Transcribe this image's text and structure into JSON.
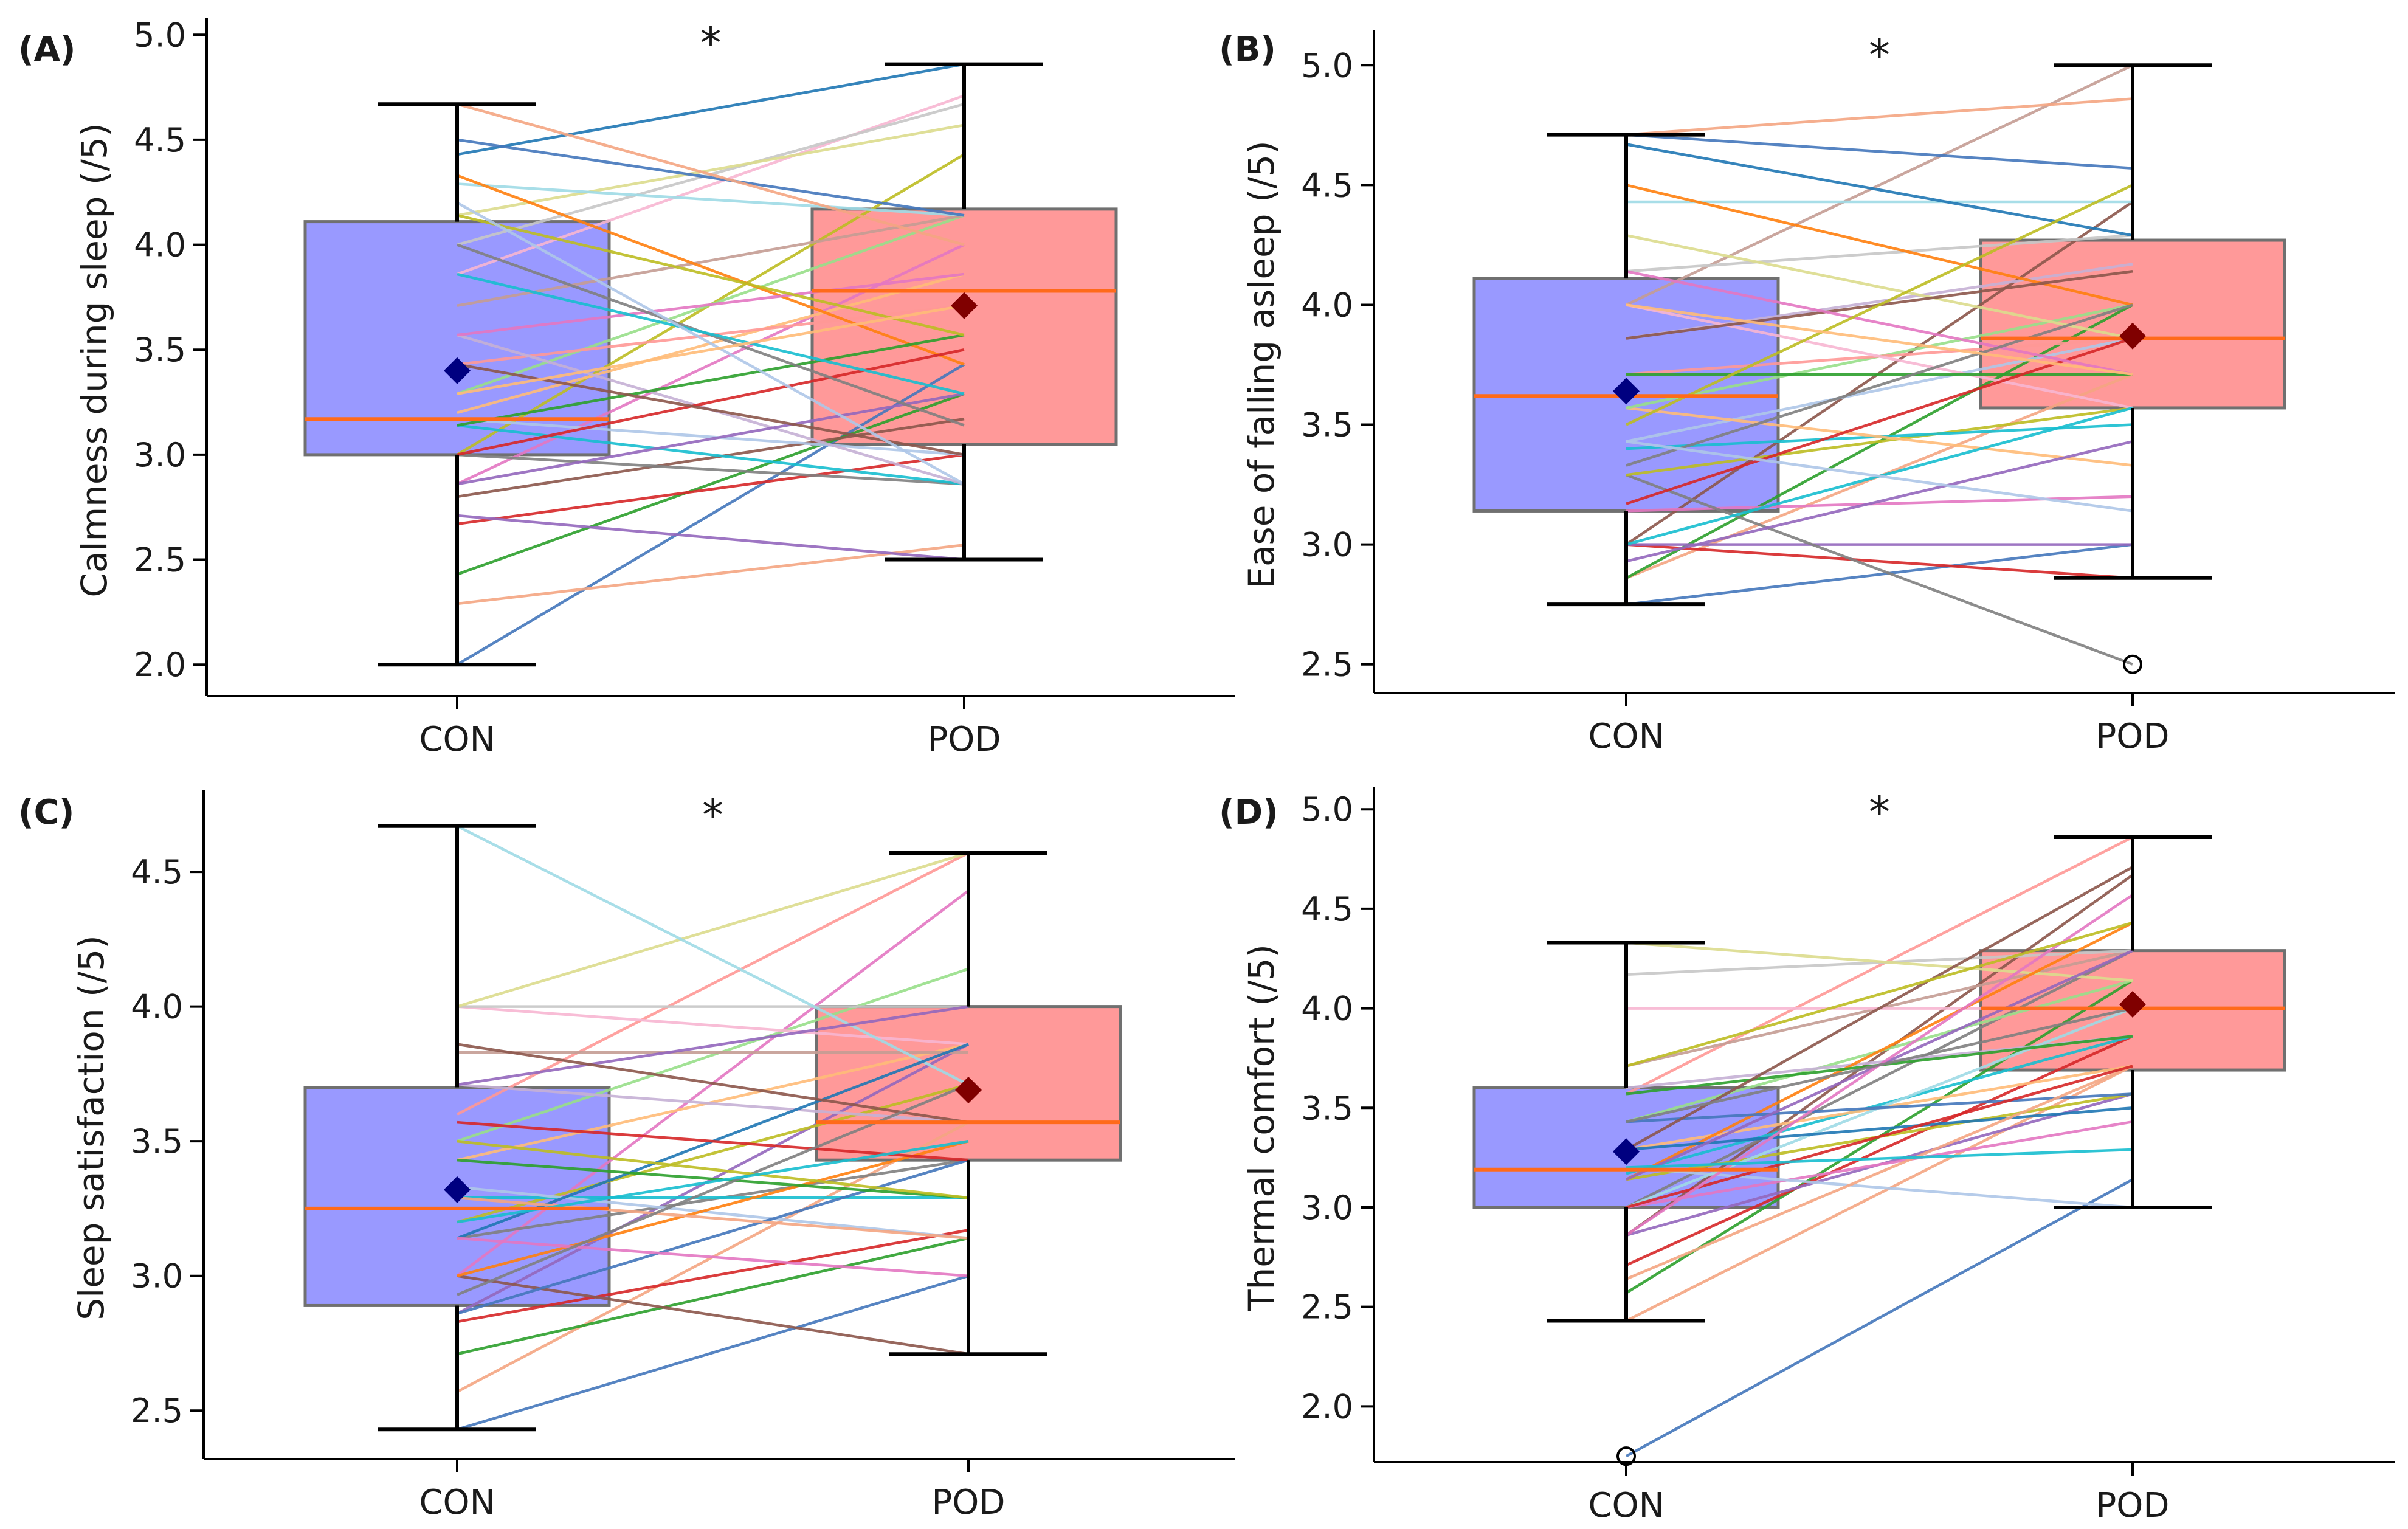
{
  "figure": {
    "panels": [
      {
        "letter": "(A)",
        "ylabel": "Calmness during sleep (/5)",
        "sig": "*",
        "categories": [
          "CON",
          "POD"
        ],
        "yticks": [
          "2.0",
          "2.5",
          "3.0",
          "3.5",
          "4.0",
          "4.5",
          "5.0"
        ]
      },
      {
        "letter": "(B)",
        "ylabel": "Ease of falling asleep (/5)",
        "sig": "*",
        "categories": [
          "CON",
          "POD"
        ],
        "yticks": [
          "2.5",
          "3.0",
          "3.5",
          "4.0",
          "4.5",
          "5.0"
        ]
      },
      {
        "letter": "(C)",
        "ylabel": "Sleep satisfaction (/5)",
        "sig": "*",
        "categories": [
          "CON",
          "POD"
        ],
        "yticks": [
          "2.5",
          "3.0",
          "3.5",
          "4.0",
          "4.5"
        ]
      },
      {
        "letter": "(D)",
        "ylabel": "Thermal comfort (/5)",
        "sig": "*",
        "categories": [
          "CON",
          "POD"
        ],
        "yticks": [
          "2.0",
          "2.5",
          "3.0",
          "3.5",
          "4.0",
          "4.5",
          "5.0"
        ]
      }
    ]
  },
  "colors": {
    "con_box": "#9999ff",
    "pod_box": "#ff9999",
    "box_edge": "#707070",
    "median": "#ff6a1a",
    "con_mean": "#000080",
    "pod_mean": "#800000",
    "whisker": "#000000",
    "palette": [
      "#4477bb",
      "#f4a582",
      "#2ca02c",
      "#d62728",
      "#9467bd",
      "#8c564b",
      "#e377c2",
      "#7f7f7f",
      "#bcbd22",
      "#17becf",
      "#aec7e8",
      "#ffbb78",
      "#98df8a",
      "#ff9896",
      "#c5b0d5",
      "#c49c94",
      "#f7b6d2",
      "#c7c7c7",
      "#dbdb8d",
      "#9edae5",
      "#ff7f0e",
      "#1f77b4"
    ]
  },
  "chart_data": [
    {
      "type": "box",
      "title": "(A)",
      "ylabel": "Calmness during sleep (/5)",
      "categories": [
        "CON",
        "POD"
      ],
      "ylim": [
        1.85,
        5.05
      ],
      "box": {
        "CON": {
          "whisker_low": 2.0,
          "q1": 3.0,
          "median": 3.17,
          "q3": 4.11,
          "whisker_high": 4.67,
          "mean": 3.4
        },
        "POD": {
          "whisker_low": 2.5,
          "q1": 3.05,
          "median": 3.78,
          "q3": 4.17,
          "whisker_high": 4.86,
          "mean": 3.71
        }
      },
      "outliers": [],
      "significance": "*",
      "pairs": [
        [
          2.0,
          3.43
        ],
        [
          2.29,
          2.57
        ],
        [
          2.43,
          3.29
        ],
        [
          2.67,
          3.0
        ],
        [
          2.71,
          2.5
        ],
        [
          2.8,
          3.17
        ],
        [
          2.86,
          4.0
        ],
        [
          3.0,
          2.86
        ],
        [
          3.0,
          4.43
        ],
        [
          3.14,
          2.86
        ],
        [
          3.17,
          3.0
        ],
        [
          3.2,
          3.86
        ],
        [
          3.29,
          4.14
        ],
        [
          3.43,
          3.71
        ],
        [
          3.57,
          2.86
        ],
        [
          3.71,
          4.14
        ],
        [
          3.86,
          4.71
        ],
        [
          4.0,
          4.67
        ],
        [
          4.14,
          4.57
        ],
        [
          4.29,
          4.14
        ],
        [
          4.33,
          3.43
        ],
        [
          4.43,
          4.86
        ],
        [
          4.5,
          4.14
        ],
        [
          4.67,
          4.0
        ],
        [
          3.14,
          3.57
        ],
        [
          3.0,
          3.5
        ],
        [
          2.86,
          3.29
        ],
        [
          3.43,
          3.0
        ],
        [
          3.57,
          3.86
        ],
        [
          4.0,
          3.14
        ],
        [
          4.14,
          3.57
        ],
        [
          3.86,
          3.29
        ],
        [
          4.2,
          2.86
        ],
        [
          3.29,
          3.71
        ]
      ]
    },
    {
      "type": "box",
      "title": "(B)",
      "ylabel": "Ease of falling asleep (/5)",
      "categories": [
        "CON",
        "POD"
      ],
      "ylim": [
        2.38,
        5.12
      ],
      "box": {
        "CON": {
          "whisker_low": 2.75,
          "q1": 3.14,
          "median": 3.62,
          "q3": 4.11,
          "whisker_high": 4.71,
          "mean": 3.64
        },
        "POD": {
          "whisker_low": 2.86,
          "q1": 3.57,
          "median": 3.86,
          "q3": 4.27,
          "whisker_high": 5.0,
          "mean": 3.87
        }
      },
      "outliers": [
        {
          "category": "POD",
          "value": 2.5
        }
      ],
      "significance": "*",
      "pairs": [
        [
          2.75,
          3.0
        ],
        [
          2.86,
          3.71
        ],
        [
          2.86,
          4.0
        ],
        [
          3.0,
          2.86
        ],
        [
          3.0,
          3.0
        ],
        [
          3.0,
          4.43
        ],
        [
          3.14,
          3.2
        ],
        [
          3.29,
          2.5
        ],
        [
          3.29,
          3.57
        ],
        [
          3.4,
          3.5
        ],
        [
          3.43,
          3.86
        ],
        [
          3.57,
          3.33
        ],
        [
          3.57,
          4.0
        ],
        [
          3.71,
          3.86
        ],
        [
          3.86,
          4.17
        ],
        [
          4.0,
          5.0
        ],
        [
          4.0,
          3.57
        ],
        [
          4.14,
          4.29
        ],
        [
          4.29,
          3.86
        ],
        [
          4.43,
          4.43
        ],
        [
          4.5,
          4.0
        ],
        [
          4.67,
          4.29
        ],
        [
          4.71,
          4.57
        ],
        [
          4.71,
          4.86
        ],
        [
          3.71,
          3.71
        ],
        [
          3.17,
          3.86
        ],
        [
          2.93,
          3.43
        ],
        [
          3.86,
          4.14
        ],
        [
          4.14,
          3.71
        ],
        [
          3.33,
          4.0
        ],
        [
          3.5,
          4.5
        ],
        [
          3.0,
          3.57
        ],
        [
          3.43,
          3.14
        ],
        [
          4.0,
          3.71
        ]
      ]
    },
    {
      "type": "box",
      "title": "(C)",
      "ylabel": "Sleep satisfaction (/5)",
      "categories": [
        "CON",
        "POD"
      ],
      "ylim": [
        2.32,
        4.78
      ],
      "box": {
        "CON": {
          "whisker_low": 2.43,
          "q1": 2.89,
          "median": 3.25,
          "q3": 3.7,
          "whisker_high": 4.67,
          "mean": 3.32
        },
        "POD": {
          "whisker_low": 2.71,
          "q1": 3.43,
          "median": 3.57,
          "q3": 4.0,
          "whisker_high": 4.57,
          "mean": 3.69
        }
      },
      "outliers": [],
      "significance": "*",
      "pairs": [
        [
          2.43,
          3.0
        ],
        [
          2.57,
          3.57
        ],
        [
          2.71,
          3.14
        ],
        [
          2.83,
          3.17
        ],
        [
          2.86,
          3.86
        ],
        [
          3.0,
          2.71
        ],
        [
          3.0,
          4.43
        ],
        [
          3.14,
          3.43
        ],
        [
          3.2,
          3.71
        ],
        [
          3.29,
          3.29
        ],
        [
          3.33,
          3.14
        ],
        [
          3.43,
          3.86
        ],
        [
          3.5,
          4.14
        ],
        [
          3.6,
          4.57
        ],
        [
          3.71,
          3.57
        ],
        [
          3.83,
          3.83
        ],
        [
          4.0,
          3.86
        ],
        [
          4.0,
          4.0
        ],
        [
          4.0,
          4.57
        ],
        [
          4.67,
          3.71
        ],
        [
          3.0,
          3.5
        ],
        [
          3.14,
          3.86
        ],
        [
          2.86,
          3.43
        ],
        [
          3.29,
          3.14
        ],
        [
          3.43,
          3.29
        ],
        [
          3.57,
          3.43
        ],
        [
          3.71,
          4.0
        ],
        [
          3.86,
          3.57
        ],
        [
          3.14,
          3.0
        ],
        [
          2.93,
          3.71
        ],
        [
          3.5,
          3.29
        ],
        [
          3.2,
          3.5
        ]
      ]
    },
    {
      "type": "box",
      "title": "(D)",
      "ylabel": "Thermal comfort (/5)",
      "categories": [
        "CON",
        "POD"
      ],
      "ylim": [
        1.72,
        5.08
      ],
      "box": {
        "CON": {
          "whisker_low": 2.43,
          "q1": 3.0,
          "median": 3.19,
          "q3": 3.6,
          "whisker_high": 4.33,
          "mean": 3.28
        },
        "POD": {
          "whisker_low": 3.0,
          "q1": 3.69,
          "median": 4.0,
          "q3": 4.29,
          "whisker_high": 4.86,
          "mean": 4.02
        }
      },
      "outliers": [
        {
          "category": "CON",
          "value": 1.75
        }
      ],
      "significance": "*",
      "pairs": [
        [
          1.75,
          3.14
        ],
        [
          2.43,
          3.71
        ],
        [
          2.57,
          4.14
        ],
        [
          2.71,
          3.86
        ],
        [
          2.86,
          3.57
        ],
        [
          2.86,
          4.67
        ],
        [
          3.0,
          3.43
        ],
        [
          3.0,
          4.29
        ],
        [
          3.14,
          3.57
        ],
        [
          3.17,
          3.86
        ],
        [
          3.2,
          3.0
        ],
        [
          3.29,
          3.71
        ],
        [
          3.43,
          4.14
        ],
        [
          3.57,
          4.86
        ],
        [
          3.6,
          3.86
        ],
        [
          3.71,
          4.29
        ],
        [
          4.0,
          4.0
        ],
        [
          4.17,
          4.29
        ],
        [
          4.33,
          4.14
        ],
        [
          3.0,
          4.0
        ],
        [
          3.14,
          4.43
        ],
        [
          3.29,
          3.5
        ],
        [
          3.43,
          3.57
        ],
        [
          2.64,
          3.71
        ],
        [
          3.57,
          3.86
        ],
        [
          3.0,
          3.71
        ],
        [
          3.14,
          4.29
        ],
        [
          3.29,
          4.71
        ],
        [
          2.86,
          4.57
        ],
        [
          3.43,
          4.0
        ],
        [
          3.71,
          4.43
        ],
        [
          3.2,
          3.29
        ]
      ]
    }
  ]
}
